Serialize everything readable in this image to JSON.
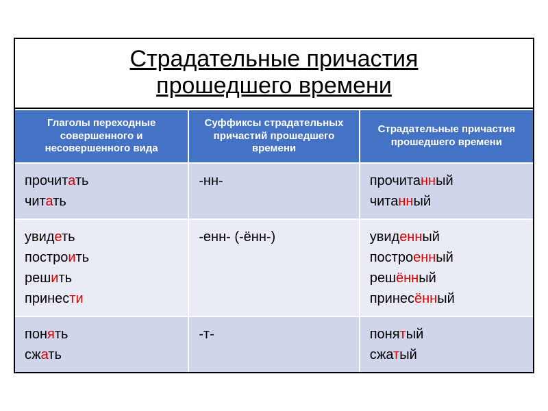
{
  "title_line1": "Страдательные причастия",
  "title_line2": "прошедшего времени",
  "headers": {
    "col1": "Глаголы переходные совершенного и несовершенного вида",
    "col2": "Суффиксы страдательных причастий прошедшего времени",
    "col3": "Страдательные причастия прошедшего времени"
  },
  "rows": [
    {
      "band": "band1",
      "col1": [
        {
          "parts": [
            [
              "прочит",
              "black"
            ],
            [
              "а",
              "red"
            ],
            [
              "ть",
              "black"
            ]
          ]
        },
        {
          "parts": [
            [
              "чит",
              "black"
            ],
            [
              "а",
              "red"
            ],
            [
              "ть",
              "black"
            ]
          ]
        }
      ],
      "col2": [
        {
          "parts": [
            [
              "-нн-",
              "black"
            ]
          ]
        }
      ],
      "col3": [
        {
          "parts": [
            [
              "прочита",
              "black"
            ],
            [
              "нн",
              "red"
            ],
            [
              "ый",
              "black"
            ]
          ]
        },
        {
          "parts": [
            [
              "чита",
              "black"
            ],
            [
              "нн",
              "red"
            ],
            [
              "ый",
              "black"
            ]
          ]
        }
      ]
    },
    {
      "band": "band2",
      "col1": [
        {
          "parts": [
            [
              "увид",
              "black"
            ],
            [
              "е",
              "red"
            ],
            [
              "ть",
              "black"
            ]
          ]
        },
        {
          "parts": [
            [
              "постро",
              "black"
            ],
            [
              "и",
              "red"
            ],
            [
              "ть",
              "black"
            ]
          ]
        },
        {
          "parts": [
            [
              "реш",
              "black"
            ],
            [
              "и",
              "red"
            ],
            [
              "ть",
              "black"
            ]
          ]
        },
        {
          "parts": [
            [
              "принес",
              "black"
            ],
            [
              "ти",
              "red"
            ]
          ]
        }
      ],
      "col2": [
        {
          "parts": [
            [
              "-енн- (-ённ-)",
              "black"
            ]
          ]
        }
      ],
      "col3": [
        {
          "parts": [
            [
              "увид",
              "black"
            ],
            [
              "енн",
              "red"
            ],
            [
              "ый",
              "black"
            ]
          ]
        },
        {
          "parts": [
            [
              "постро",
              "black"
            ],
            [
              "енн",
              "red"
            ],
            [
              "ый",
              "black"
            ]
          ]
        },
        {
          "parts": [
            [
              "реш",
              "black"
            ],
            [
              "ённ",
              "red"
            ],
            [
              "ый",
              "black"
            ]
          ]
        },
        {
          "parts": [
            [
              "принес",
              "black"
            ],
            [
              "ённ",
              "red"
            ],
            [
              "ый",
              "black"
            ]
          ]
        }
      ]
    },
    {
      "band": "band1",
      "col1": [
        {
          "parts": [
            [
              "пон",
              "black"
            ],
            [
              "я",
              "red"
            ],
            [
              "ть",
              "black"
            ]
          ]
        },
        {
          "parts": [
            [
              "сж",
              "black"
            ],
            [
              "а",
              "red"
            ],
            [
              "ть",
              "black"
            ]
          ]
        }
      ],
      "col2": [
        {
          "parts": [
            [
              "-т-",
              "black"
            ]
          ]
        }
      ],
      "col3": [
        {
          "parts": [
            [
              "поня",
              "black"
            ],
            [
              "т",
              "red"
            ],
            [
              "ый",
              "black"
            ]
          ]
        },
        {
          "parts": [
            [
              "сжа",
              "black"
            ],
            [
              "т",
              "red"
            ],
            [
              "ый",
              "black"
            ]
          ]
        }
      ]
    }
  ],
  "style": {
    "header_bg": "#4472c4",
    "header_fg": "#ffffff",
    "band1_bg": "#cfd5ea",
    "band2_bg": "#e9ebf5",
    "red": "#d90000",
    "border_inner": "#ffffff",
    "border_outer": "#000000",
    "title_fontsize": 34,
    "header_fontsize": 15,
    "cell_fontsize": 20
  }
}
